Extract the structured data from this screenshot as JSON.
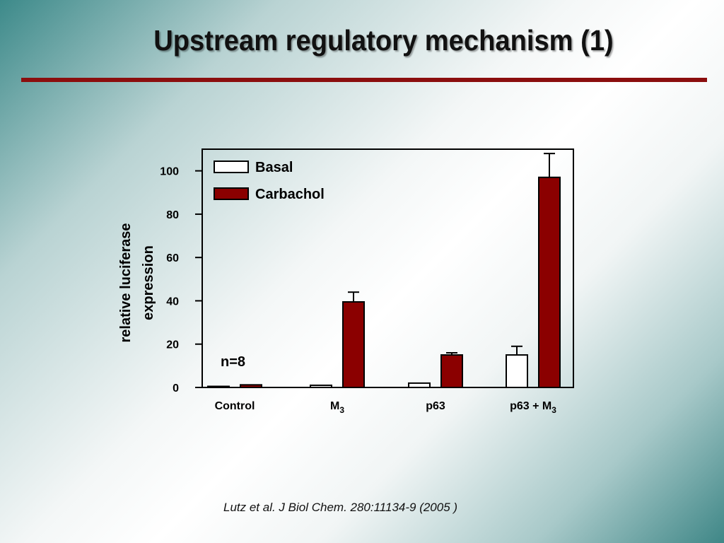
{
  "slide": {
    "title": "Upstream regulatory mechanism (1)",
    "citation": "Lutz et al. J Biol Chem. 280:11134-9  (2005 )"
  },
  "colors": {
    "title_rule": "#8b0e0e",
    "carbachol": "#8b0000",
    "basal": "#ffffff"
  },
  "chart_data": {
    "type": "bar",
    "ylabel": [
      "relative luciferase",
      "expression"
    ],
    "ylim": [
      0,
      110
    ],
    "yticks": [
      0,
      20,
      40,
      60,
      80,
      100
    ],
    "categories": [
      {
        "label": "Control",
        "sub": ""
      },
      {
        "label": "M",
        "sub": "3"
      },
      {
        "label": "p63",
        "sub": ""
      },
      {
        "label": "p63 + M",
        "sub": "3"
      }
    ],
    "series": [
      {
        "name": "Basal",
        "color": "#ffffff",
        "values": [
          0.5,
          1,
          2,
          15
        ],
        "errors": [
          0,
          0,
          0,
          4
        ]
      },
      {
        "name": "Carbachol",
        "color": "#8b0000",
        "values": [
          1.2,
          39.5,
          15,
          97
        ],
        "errors": [
          0,
          4.5,
          1,
          11
        ]
      }
    ],
    "annotation": "n=8",
    "legend": "top-left, inside plot",
    "grid": false
  }
}
